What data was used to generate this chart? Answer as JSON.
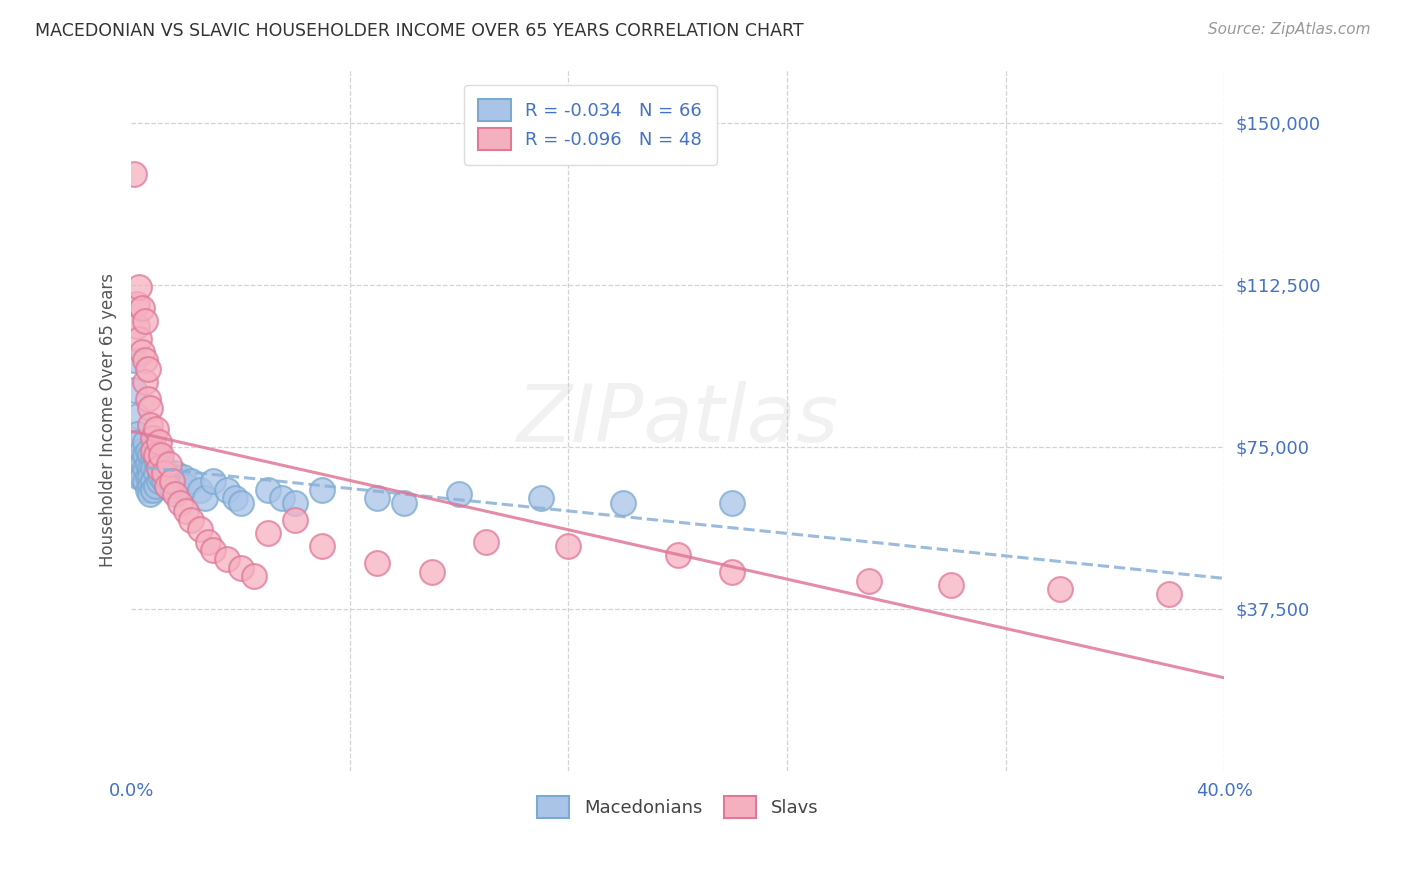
{
  "title": "MACEDONIAN VS SLAVIC HOUSEHOLDER INCOME OVER 65 YEARS CORRELATION CHART",
  "source": "Source: ZipAtlas.com",
  "ylabel": "Householder Income Over 65 years",
  "watermark": "ZIPatlas",
  "r1": "-0.034",
  "n1": "66",
  "r2": "-0.096",
  "n2": "48",
  "xlim": [
    0.0,
    0.4
  ],
  "ylim": [
    0,
    162500
  ],
  "yticks": [
    37500,
    75000,
    112500,
    150000
  ],
  "ytick_labels": [
    "$37,500",
    "$75,000",
    "$112,500",
    "$150,000"
  ],
  "xticks": [
    0.0,
    0.08,
    0.16,
    0.24,
    0.32,
    0.4
  ],
  "color_mac": "#aac4e8",
  "color_mac_edge": "#7aaad0",
  "color_slav": "#f5b0c0",
  "color_slav_edge": "#e07898",
  "color_mac_line": "#8ab0d8",
  "color_slav_line": "#e07898",
  "color_blue": "#4472c4",
  "color_pink": "#d05070",
  "background": "#ffffff",
  "mac_x": [
    0.001,
    0.001,
    0.002,
    0.002,
    0.002,
    0.003,
    0.003,
    0.003,
    0.003,
    0.004,
    0.004,
    0.004,
    0.005,
    0.005,
    0.005,
    0.005,
    0.006,
    0.006,
    0.006,
    0.006,
    0.007,
    0.007,
    0.007,
    0.007,
    0.007,
    0.008,
    0.008,
    0.008,
    0.008,
    0.009,
    0.009,
    0.009,
    0.01,
    0.01,
    0.01,
    0.011,
    0.011,
    0.012,
    0.012,
    0.013,
    0.013,
    0.014,
    0.015,
    0.015,
    0.016,
    0.017,
    0.018,
    0.019,
    0.02,
    0.022,
    0.025,
    0.027,
    0.03,
    0.035,
    0.038,
    0.04,
    0.05,
    0.055,
    0.06,
    0.07,
    0.09,
    0.1,
    0.12,
    0.15,
    0.18,
    0.22
  ],
  "mac_y": [
    95000,
    88000,
    82000,
    78000,
    74000,
    76000,
    72000,
    70000,
    68000,
    74000,
    71000,
    68000,
    76000,
    73000,
    70000,
    67000,
    74000,
    71000,
    68000,
    65000,
    73000,
    70000,
    68000,
    66000,
    64000,
    72000,
    70000,
    67000,
    65000,
    72000,
    69000,
    66000,
    73000,
    70000,
    67000,
    71000,
    68000,
    70000,
    67000,
    69000,
    66000,
    68000,
    67000,
    65000,
    69000,
    67000,
    66000,
    68000,
    66000,
    67000,
    65000,
    63000,
    67000,
    65000,
    63000,
    62000,
    65000,
    63000,
    62000,
    65000,
    63000,
    62000,
    64000,
    63000,
    62000,
    62000
  ],
  "slav_x": [
    0.001,
    0.002,
    0.002,
    0.003,
    0.003,
    0.004,
    0.004,
    0.005,
    0.005,
    0.005,
    0.006,
    0.006,
    0.007,
    0.007,
    0.008,
    0.008,
    0.009,
    0.009,
    0.01,
    0.01,
    0.011,
    0.012,
    0.013,
    0.014,
    0.015,
    0.016,
    0.018,
    0.02,
    0.022,
    0.025,
    0.028,
    0.03,
    0.035,
    0.04,
    0.045,
    0.05,
    0.06,
    0.07,
    0.09,
    0.11,
    0.13,
    0.16,
    0.2,
    0.22,
    0.27,
    0.3,
    0.34,
    0.38
  ],
  "slav_y": [
    138000,
    108000,
    103000,
    112000,
    100000,
    107000,
    97000,
    104000,
    95000,
    90000,
    86000,
    93000,
    84000,
    80000,
    77000,
    74000,
    79000,
    73000,
    76000,
    70000,
    73000,
    69000,
    66000,
    71000,
    67000,
    64000,
    62000,
    60000,
    58000,
    56000,
    53000,
    51000,
    49000,
    47000,
    45000,
    55000,
    58000,
    52000,
    48000,
    46000,
    53000,
    52000,
    50000,
    46000,
    44000,
    43000,
    42000,
    41000
  ]
}
